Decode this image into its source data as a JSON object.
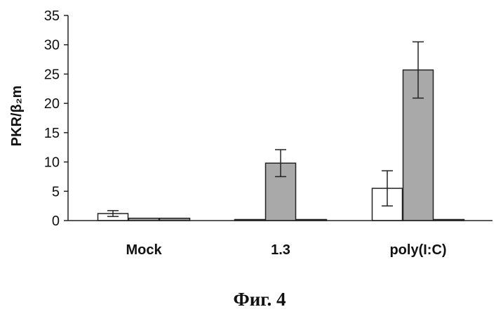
{
  "chart_data": {
    "type": "bar",
    "title": "",
    "xlabel": "",
    "ylabel": "PKR/β₂m",
    "ylim": [
      0,
      35
    ],
    "yticks": [
      0,
      5,
      10,
      15,
      20,
      25,
      30,
      35
    ],
    "grid": false,
    "legend": "none",
    "categories": [
      "Mock",
      "1.3",
      "poly(I:C)"
    ],
    "series": [
      {
        "values": [
          1.2,
          0.1,
          5.5
        ],
        "errors": [
          0.5,
          0,
          3.0
        ],
        "fill": "#ffffff"
      },
      {
        "values": [
          0.4,
          9.8,
          25.7
        ],
        "errors": [
          0,
          2.3,
          4.8
        ],
        "fill": "#a9a9a9"
      },
      {
        "values": [
          0.4,
          0.1,
          0.1
        ],
        "errors": [
          0,
          0,
          0
        ],
        "fill": "#9a9a9a"
      }
    ]
  },
  "figure": {
    "caption": "Фиг. 4"
  }
}
